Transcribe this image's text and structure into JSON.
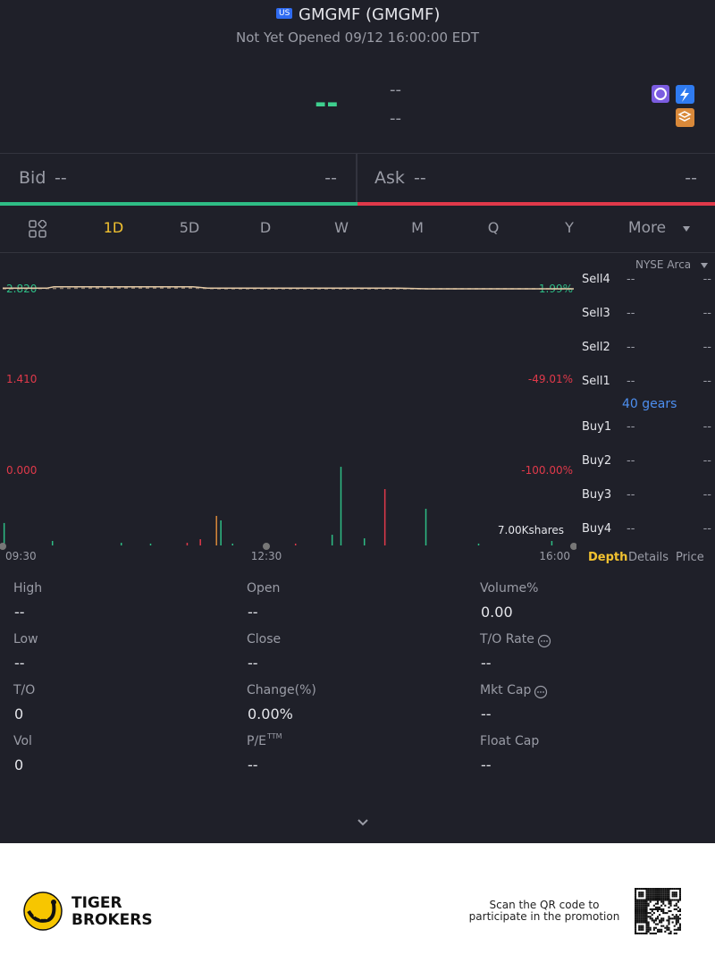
{
  "header": {
    "market_badge": "US",
    "title": "GMGMF (GMGMF)",
    "status": "Not Yet Opened 09/12 16:00:00 EDT"
  },
  "quote": {
    "price": "--",
    "change": "--",
    "change_percent": "--"
  },
  "bid_ask": {
    "bid_label": "Bid",
    "bid_price": "--",
    "bid_size": "--",
    "ask_label": "Ask",
    "ask_price": "--",
    "ask_size": "--"
  },
  "periods": [
    "1D",
    "5D",
    "D",
    "W",
    "M",
    "Q",
    "Y",
    "More"
  ],
  "chart": {
    "price_labels": [
      "2.820",
      "1.410",
      "0.000"
    ],
    "percent_labels": [
      "1.99%",
      "-49.01%",
      "-100.00%"
    ],
    "time_labels": [
      "09:30",
      "12:30",
      "16:00"
    ],
    "volume_label": "7.00Kshares",
    "xlim": [
      0,
      390
    ],
    "ylim": [
      0,
      2.82
    ],
    "volume_ylim": [
      0,
      7000
    ],
    "price_line": {
      "color": "#e3c9a6",
      "x": [
        0,
        30,
        35,
        130,
        140,
        270,
        290,
        390
      ],
      "values": [
        2.83,
        2.83,
        2.85,
        2.85,
        2.83,
        2.83,
        2.82,
        2.82
      ]
    },
    "avg_line": {
      "color": "#8a7a6a",
      "x": [
        0,
        60,
        130,
        150,
        390
      ],
      "values": [
        2.82,
        2.83,
        2.83,
        2.82,
        2.82
      ]
    },
    "volume": {
      "x": [
        1,
        34,
        81,
        101,
        126,
        135,
        146,
        149,
        157,
        200,
        225,
        231,
        247,
        261,
        289,
        325,
        375
      ],
      "values": [
        1950,
        390,
        230,
        160,
        230,
        540,
        2570,
        2180,
        160,
        160,
        930,
        6840,
        620,
        4900,
        3190,
        160,
        390
      ],
      "colors": [
        "#2ebd85",
        "#2ebd85",
        "#2ebd85",
        "#2ebd85",
        "#e0394a",
        "#e0394a",
        "#d9893a",
        "#2ebd85",
        "#2ebd85",
        "#e0394a",
        "#2ebd85",
        "#2ebd85",
        "#2ebd85",
        "#e0394a",
        "#2ebd85",
        "#2ebd85",
        "#2ebd85"
      ]
    }
  },
  "order_book": {
    "exchange": "NYSE Arca",
    "sell": [
      {
        "label": "Sell4",
        "price": "--",
        "size": "--"
      },
      {
        "label": "Sell3",
        "price": "--",
        "size": "--"
      },
      {
        "label": "Sell2",
        "price": "--",
        "size": "--"
      },
      {
        "label": "Sell1",
        "price": "--",
        "size": "--"
      }
    ],
    "gears": "40 gears",
    "buy": [
      {
        "label": "Buy1",
        "price": "--",
        "size": "--"
      },
      {
        "label": "Buy2",
        "price": "--",
        "size": "--"
      },
      {
        "label": "Buy3",
        "price": "--",
        "size": "--"
      },
      {
        "label": "Buy4",
        "price": "--",
        "size": "--"
      }
    ],
    "tabs": [
      "Depth",
      "Details",
      "Price"
    ]
  },
  "stats": [
    [
      {
        "label": "High",
        "value": "--"
      },
      {
        "label": "Open",
        "value": "--"
      },
      {
        "label": "Volume%",
        "value": "0.00"
      }
    ],
    [
      {
        "label": "Low",
        "value": "--"
      },
      {
        "label": "Close",
        "value": "--"
      },
      {
        "label": "T/O Rate",
        "value": "--"
      }
    ],
    [
      {
        "label": "T/O",
        "value": "0"
      },
      {
        "label": "Change(%)",
        "value": "0.00%"
      },
      {
        "label": "Mkt Cap",
        "value": "--"
      }
    ],
    [
      {
        "label": "Vol",
        "value": "0"
      },
      {
        "label": "P/E",
        "sup": "TTM",
        "value": "--"
      },
      {
        "label": "Float Cap",
        "value": "--"
      }
    ]
  ],
  "footer": {
    "brand_line1": "TIGER",
    "brand_line2": "BROKERS",
    "qr_line1": "Scan the QR code to",
    "qr_line2": "participate in the promotion"
  }
}
